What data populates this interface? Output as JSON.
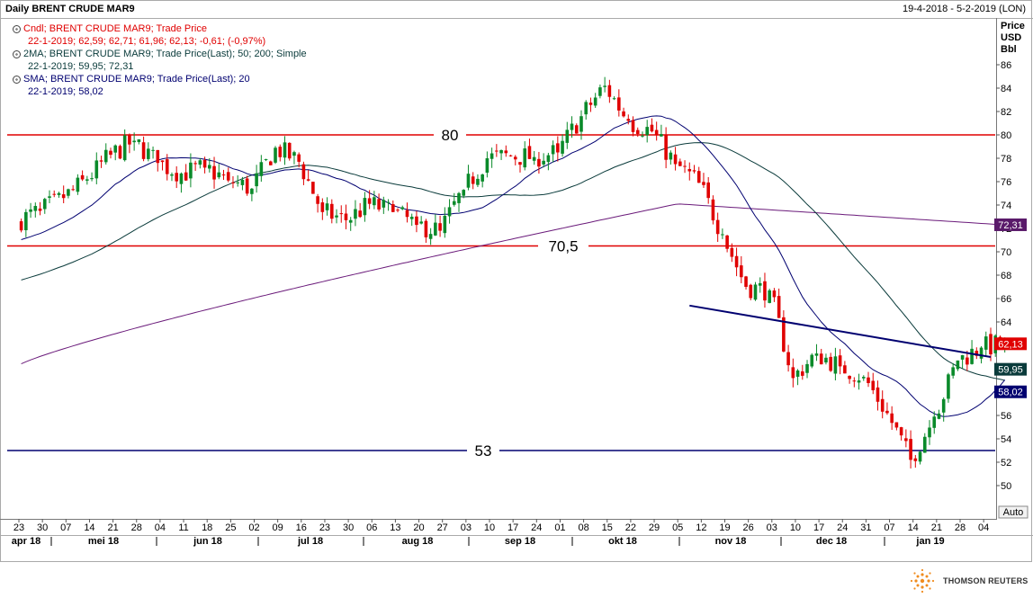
{
  "header": {
    "title": "Daily BRENT CRUDE MAR9",
    "range": "19-4-2018 - 5-2-2019 (LON)"
  },
  "legend": [
    {
      "label": "Cndl; BRENT CRUDE MAR9; Trade Price",
      "values": "22-1-2019; 62,59; 62,71; 61,96; 62,13; -0,61; (-0,97%)",
      "color": "#e00000"
    },
    {
      "label": "2MA; BRENT CRUDE MAR9; Trade Price(Last);  50; 200; Simple",
      "values": "22-1-2019; 59,95; 72,31",
      "color": "#0a3b3b"
    },
    {
      "label": "SMA; BRENT CRUDE MAR9; Trade Price(Last);  20",
      "values": "22-1-2019; 58,02",
      "color": "#000070"
    }
  ],
  "axis_unit": [
    "Price",
    "USD",
    "Bbl"
  ],
  "auto_label": "Auto",
  "logo_text": "THOMSON REUTERS",
  "chart_data": {
    "type": "candlestick",
    "title": "Daily BRENT CRUDE MAR9",
    "ylim": [
      49,
      89
    ],
    "y_ticks": [
      50,
      52,
      54,
      56,
      58,
      60,
      62,
      64,
      66,
      68,
      70,
      72,
      74,
      76,
      78,
      80,
      82,
      84,
      86
    ],
    "x_tick_labels": [
      "23",
      "30",
      "07",
      "14",
      "21",
      "28",
      "04",
      "11",
      "18",
      "25",
      "02",
      "09",
      "16",
      "23",
      "30",
      "06",
      "13",
      "20",
      "27",
      "03",
      "10",
      "17",
      "24",
      "01",
      "08",
      "15",
      "22",
      "29",
      "05",
      "12",
      "19",
      "26",
      "03",
      "10",
      "17",
      "24",
      "31",
      "07",
      "14",
      "21",
      "28",
      "04"
    ],
    "month_labels": [
      "apr 18",
      "mei 18",
      "jun 18",
      "jul 18",
      "aug 18",
      "sep 18",
      "okt 18",
      "nov 18",
      "dec 18",
      "jan 19"
    ],
    "horizontal_levels": [
      {
        "value": 80,
        "label": "80",
        "color": "#e00000"
      },
      {
        "value": 70.5,
        "label": "70,5",
        "color": "#e00000"
      },
      {
        "value": 53,
        "label": "53",
        "color": "#000070"
      }
    ],
    "trendline": {
      "start": {
        "week": 28.5,
        "price": 65.4
      },
      "end": {
        "week": 41.3,
        "price": 61.0
      },
      "color": "#000070"
    },
    "last_values": [
      {
        "value": 72.31,
        "label": "72,31",
        "color": "#5a1a6a"
      },
      {
        "value": 62.13,
        "label": "62,13",
        "color": "#e00000"
      },
      {
        "value": 59.95,
        "label": "59,95",
        "color": "#0a3b3b"
      },
      {
        "value": 58.02,
        "label": "58,02",
        "color": "#000070"
      }
    ],
    "weekly_closes": [
      73.5,
      74.6,
      76.2,
      78.3,
      79.5,
      77.6,
      76.7,
      77.2,
      76.1,
      75.4,
      78.9,
      77.7,
      73.4,
      72.7,
      74.1,
      73.4,
      72.3,
      71.8,
      75.3,
      78.0,
      78.2,
      78.1,
      78.5,
      81.6,
      84.2,
      81.2,
      80.3,
      77.5,
      75.9,
      71.5,
      67.0,
      66.7,
      59.2,
      61.3,
      60.2,
      59.3,
      56.2,
      52.2,
      55.9,
      60.7,
      61.8,
      62.13
    ]
  }
}
